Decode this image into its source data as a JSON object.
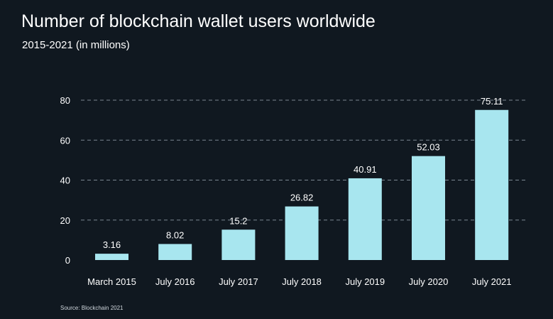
{
  "header": {
    "title": "Number of blockchain wallet users worldwide",
    "subtitle": "2015-2021 (in millions)"
  },
  "footer": {
    "source": "Source: Blockchain 2021"
  },
  "colors": {
    "background": "#101820",
    "bar": "#a8e6ef",
    "grid": "#7b8691",
    "text": "#ffffff"
  },
  "chart_data": {
    "type": "bar",
    "categories": [
      "March 2015",
      "July 2016",
      "July 2017",
      "July 2018",
      "July 2019",
      "July 2020",
      "July 2021"
    ],
    "values": [
      3.16,
      8.02,
      15.2,
      26.82,
      40.91,
      52.03,
      75.11
    ],
    "value_labels": [
      "3.16",
      "8.02",
      "15.2",
      "26.82",
      "40.91",
      "52.03",
      "75.11"
    ],
    "title": "Number of blockchain wallet users worldwide",
    "subtitle": "2015-2021 (in millions)",
    "xlabel": "",
    "ylabel": "",
    "ylim": [
      0,
      80
    ],
    "yticks": [
      0,
      20,
      40,
      60,
      80
    ],
    "grid": true,
    "grid_style": "dashed",
    "legend": false
  }
}
